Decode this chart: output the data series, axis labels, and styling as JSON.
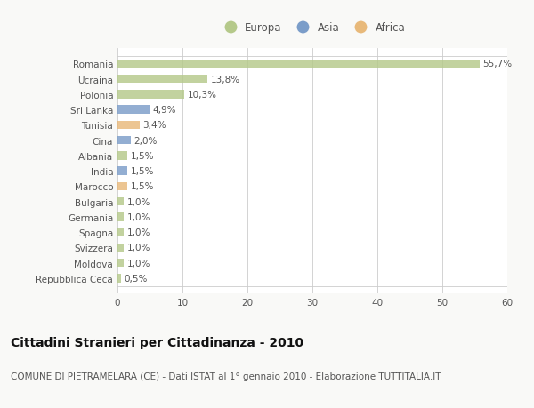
{
  "categories": [
    "Repubblica Ceca",
    "Moldova",
    "Svizzera",
    "Spagna",
    "Germania",
    "Bulgaria",
    "Marocco",
    "India",
    "Albania",
    "Cina",
    "Tunisia",
    "Sri Lanka",
    "Polonia",
    "Ucraina",
    "Romania"
  ],
  "values": [
    0.5,
    1.0,
    1.0,
    1.0,
    1.0,
    1.0,
    1.5,
    1.5,
    1.5,
    2.0,
    3.4,
    4.9,
    10.3,
    13.8,
    55.7
  ],
  "labels": [
    "0,5%",
    "1,0%",
    "1,0%",
    "1,0%",
    "1,0%",
    "1,0%",
    "1,5%",
    "1,5%",
    "1,5%",
    "2,0%",
    "3,4%",
    "4,9%",
    "10,3%",
    "13,8%",
    "55,7%"
  ],
  "colors": [
    "#b5c98a",
    "#b5c98a",
    "#b5c98a",
    "#b5c98a",
    "#b5c98a",
    "#b5c98a",
    "#e8b97a",
    "#7b9dc9",
    "#b5c98a",
    "#7b9dc9",
    "#e8b97a",
    "#7b9dc9",
    "#b5c98a",
    "#b5c98a",
    "#b5c98a"
  ],
  "legend_labels": [
    "Europa",
    "Asia",
    "Africa"
  ],
  "legend_colors": [
    "#b5c98a",
    "#7b9dc9",
    "#e8b97a"
  ],
  "xlim": [
    0,
    60
  ],
  "xticks": [
    0,
    10,
    20,
    30,
    40,
    50,
    60
  ],
  "title": "Cittadini Stranieri per Cittadinanza - 2010",
  "subtitle": "COMUNE DI PIETRAMELARA (CE) - Dati ISTAT al 1° gennaio 2010 - Elaborazione TUTTITALIA.IT",
  "bg_color": "#f9f9f7",
  "bar_area_color": "#ffffff",
  "title_fontsize": 10,
  "subtitle_fontsize": 7.5,
  "label_fontsize": 7.5,
  "tick_fontsize": 7.5,
  "legend_fontsize": 8.5
}
